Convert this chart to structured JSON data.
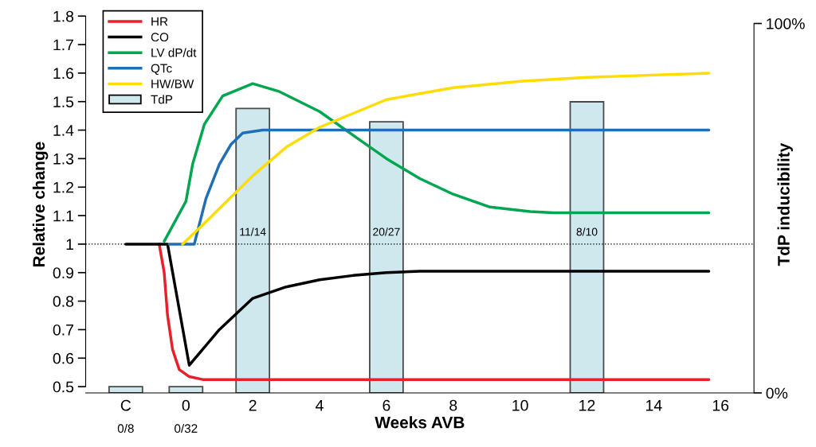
{
  "chart_data": {
    "type": "line",
    "xlabel": "Weeks AVB",
    "ylabel": "Relative change",
    "y2label": "TdP inducibility",
    "xlim": [
      -3,
      17
    ],
    "xticks": [
      {
        "value": -1.8,
        "label": "C"
      },
      0,
      2,
      4,
      6,
      8,
      10,
      12,
      14,
      16
    ],
    "ylim": [
      0.478,
      1.8
    ],
    "yticks": [
      0.5,
      0.6,
      0.7,
      0.8,
      0.9,
      1,
      1.1,
      1.2,
      1.3,
      1.4,
      1.5,
      1.6,
      1.7,
      1.8
    ],
    "y2lim": [
      0,
      102
    ],
    "y2ticks": [
      {
        "value": 0,
        "label": "0%"
      },
      {
        "value": 100,
        "label": "100%"
      }
    ],
    "legend": "top left",
    "grid": false,
    "ref_lines": [
      {
        "axis": "y",
        "value": 1,
        "color": "#000000",
        "line_style": "dotted"
      }
    ],
    "series": [
      {
        "name": "HR",
        "color": "#e8202a",
        "x": [
          -0.8,
          -0.65,
          -0.55,
          -0.4,
          -0.2,
          0.1,
          0.5,
          15.65
        ],
        "values": [
          1.0,
          0.9,
          0.75,
          0.63,
          0.56,
          0.535,
          0.525,
          0.525
        ]
      },
      {
        "name": "CO",
        "color": "#000000",
        "x": [
          -1.8,
          -0.55,
          0.1,
          1.0,
          2.0,
          3,
          4,
          5,
          6,
          7,
          8,
          15.65
        ],
        "values": [
          1.0,
          1.0,
          0.575,
          0.7,
          0.81,
          0.85,
          0.875,
          0.89,
          0.9,
          0.905,
          0.905,
          0.905
        ]
      },
      {
        "name": "LV dP/dt",
        "color": "#00a650",
        "x": [
          -0.65,
          0,
          0.2,
          0.55,
          1.1,
          2.0,
          2.8,
          4,
          5.15,
          6,
          7,
          8,
          9.1,
          10.3,
          11,
          15.65
        ],
        "values": [
          1.01,
          1.15,
          1.28,
          1.42,
          1.52,
          1.563,
          1.535,
          1.465,
          1.37,
          1.3,
          1.23,
          1.175,
          1.13,
          1.114,
          1.11,
          1.11
        ]
      },
      {
        "name": "QTc",
        "color": "#1f6fb8",
        "x": [
          -0.5,
          0.25,
          0.6,
          1.0,
          1.35,
          1.7,
          2.3,
          15.65
        ],
        "values": [
          1.0,
          1.0,
          1.16,
          1.28,
          1.35,
          1.39,
          1.4,
          1.4
        ]
      },
      {
        "name": "HW/BW",
        "color": "#ffdd00",
        "x": [
          -0.1,
          0.7,
          2.0,
          3,
          4,
          6,
          8,
          10,
          12,
          15.65
        ],
        "values": [
          1.0,
          1.09,
          1.24,
          1.34,
          1.41,
          1.507,
          1.549,
          1.571,
          1.585,
          1.6
        ]
      },
      {
        "name": "TdP",
        "type": "bar",
        "axis": "y2",
        "color": "#cfe8ee",
        "x": [
          -1.8,
          0,
          2,
          6,
          12
        ],
        "values": [
          1.7,
          1.7,
          77,
          73.4,
          78.8
        ]
      }
    ],
    "annotations": [
      "0/8",
      "0/32",
      "11/14",
      "20/27",
      "8/10"
    ]
  }
}
